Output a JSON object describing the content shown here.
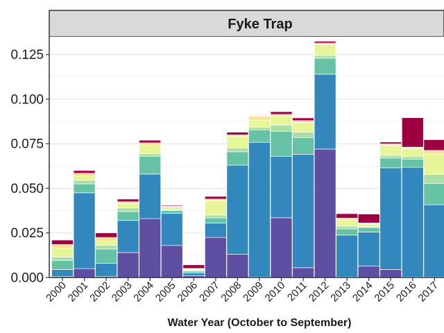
{
  "chart_data": {
    "type": "bar",
    "stacked": true,
    "facet": "Fyke Trap",
    "xlabel": "Water Year (October to September)",
    "ylabel": "",
    "ylim": [
      0,
      0.135
    ],
    "yticks": [
      "0.000",
      "0.025",
      "0.050",
      "0.075",
      "0.100",
      "0.125"
    ],
    "yticks_values": [
      0,
      0.025,
      0.05,
      0.075,
      0.1,
      0.125
    ],
    "grid": true,
    "categories": [
      "2000",
      "2001",
      "2002",
      "2003",
      "2004",
      "2005",
      "2006",
      "2007",
      "2008",
      "2009",
      "2010",
      "2011",
      "2012",
      "2013",
      "2014",
      "2015",
      "2016",
      "2017"
    ],
    "series": [
      {
        "color": "#5e4fa2",
        "values": [
          0.0005,
          0.005,
          0.0005,
          0.014,
          0.033,
          0.018,
          0.001,
          0.0225,
          0.013,
          0.0003,
          0.0335,
          0.0055,
          0.072,
          0.0003,
          0.0065,
          0.0045,
          0.0003,
          0.0003
        ]
      },
      {
        "color": "#3288bd",
        "values": [
          0.004,
          0.0425,
          0.0075,
          0.018,
          0.025,
          0.018,
          0.0015,
          0.008,
          0.05,
          0.0755,
          0.0345,
          0.0635,
          0.042,
          0.0235,
          0.019,
          0.057,
          0.0615,
          0.0405
        ]
      },
      {
        "color": "#66c2a5",
        "values": [
          0.005,
          0.005,
          0.008,
          0.005,
          0.01,
          0.0015,
          0.001,
          0.003,
          0.0075,
          0.007,
          0.014,
          0.0095,
          0.009,
          0.0035,
          0.0025,
          0.0055,
          0.0045,
          0.012
        ]
      },
      {
        "color": "#abdda4",
        "values": [
          0.002,
          0.002,
          0.002,
          0.002,
          0.0015,
          0.0005,
          0.0005,
          0.0015,
          0.002,
          0.0015,
          0.0035,
          0.003,
          0.0015,
          0.0015,
          0.0005,
          0.0015,
          0.0015,
          0.005
        ]
      },
      {
        "color": "#e6f598",
        "values": [
          0.005,
          0.0025,
          0.0025,
          0.0025,
          0.0045,
          0.0015,
          0.0005,
          0.008,
          0.0065,
          0.004,
          0.005,
          0.0055,
          0.006,
          0.0035,
          0.0015,
          0.0055,
          0.0045,
          0.0115
        ]
      },
      {
        "color": "#fee08b",
        "values": [
          0.0015,
          0.001,
          0.0015,
          0.0005,
          0.001,
          0.0003,
          0.0003,
          0.0005,
          0.0005,
          0.002,
          0.0005,
          0.0005,
          0.0005,
          0.0005,
          0.0003,
          0.0005,
          0.0005,
          0.0015
        ]
      },
      {
        "color": "#f46d43",
        "values": [
          0.0005,
          0.0005,
          0.0005,
          0.0005,
          0.0005,
          0.0003,
          0.0003,
          0.0005,
          0.0005,
          0.0003,
          0.0005,
          0.0005,
          0.0005,
          0.0005,
          0.0003,
          0.0005,
          0.0003,
          0.0005
        ]
      },
      {
        "color": "#9e0142",
        "values": [
          0.0025,
          0.0015,
          0.0025,
          0.0015,
          0.0015,
          0.0005,
          0.002,
          0.0015,
          0.0015,
          0.0003,
          0.0015,
          0.0015,
          0.001,
          0.0025,
          0.005,
          0.001,
          0.0165,
          0.006
        ]
      }
    ]
  }
}
